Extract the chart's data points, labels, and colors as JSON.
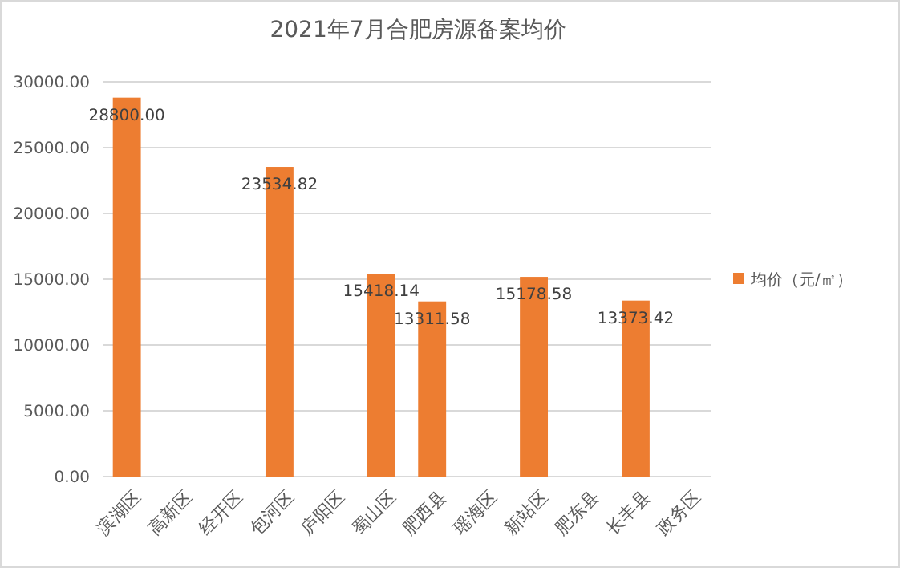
{
  "chart_data": {
    "type": "bar",
    "title": "2021年7月合肥房源备案均价",
    "categories": [
      "滨湖区",
      "高新区",
      "经开区",
      "包河区",
      "庐阳区",
      "蜀山区",
      "肥西县",
      "瑶海区",
      "新站区",
      "肥东县",
      "长丰县",
      "政务区"
    ],
    "series": [
      {
        "name": "均价（元/㎡）",
        "color": "#ed7d31",
        "values": [
          28800.0,
          null,
          null,
          23534.82,
          null,
          15418.14,
          13311.58,
          null,
          15178.58,
          null,
          13373.42,
          null
        ],
        "value_labels": [
          "28800.00",
          null,
          null,
          "23534.82",
          null,
          "15418.14",
          "13311.58",
          null,
          "15178.58",
          null,
          "13373.42",
          null
        ]
      }
    ],
    "ylim": [
      0,
      30000
    ],
    "yticks": [
      {
        "value": 0,
        "label": "0.00"
      },
      {
        "value": 5000,
        "label": "5000.00"
      },
      {
        "value": 10000,
        "label": "10000.00"
      },
      {
        "value": 15000,
        "label": "15000.00"
      },
      {
        "value": 20000,
        "label": "20000.00"
      },
      {
        "value": 25000,
        "label": "25000.00"
      },
      {
        "value": 30000,
        "label": "30000.00"
      }
    ],
    "grid": "y",
    "legend": "right"
  }
}
